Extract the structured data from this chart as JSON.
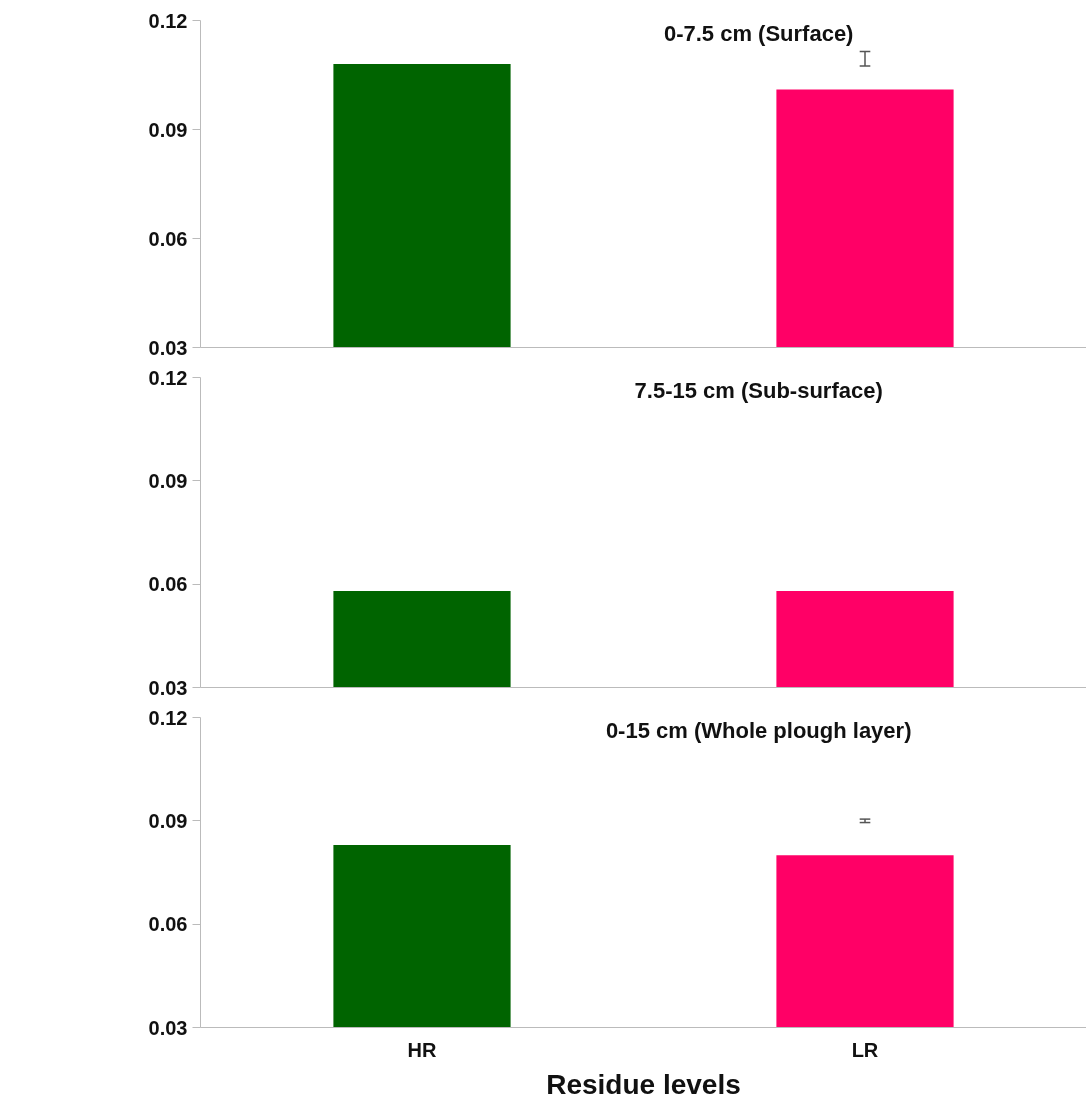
{
  "chart_data": [
    {
      "type": "bar",
      "title": "0-7.5 cm (Surface)",
      "categories": [
        null,
        null
      ],
      "colors": [
        "#006400",
        "#ff0066"
      ],
      "values": [
        0.108,
        0.101
      ],
      "errors": [
        null,
        [
          0.1075,
          0.1115
        ]
      ],
      "ylim": [
        0.03,
        0.12
      ],
      "yticks": [
        0.03,
        0.06,
        0.09,
        0.12
      ],
      "grid": false
    },
    {
      "type": "bar",
      "title": "7.5-15 cm (Sub-surface)",
      "categories": [
        null,
        null
      ],
      "colors": [
        "#006400",
        "#ff0066"
      ],
      "values": [
        0.058,
        0.058
      ],
      "ylim": [
        0.03,
        0.12
      ],
      "yticks": [
        0.03,
        0.06,
        0.09,
        0.12
      ],
      "grid": false
    },
    {
      "type": "bar",
      "title": "0-15 cm (Whole plough layer)",
      "xlabel": "Residue levels",
      "categories": [
        "HR",
        "LR"
      ],
      "colors": [
        "#006400",
        "#ff0066"
      ],
      "values": [
        0.083,
        0.08
      ],
      "errors": [
        null,
        [
          0.0895,
          0.0905
        ]
      ],
      "ylim": [
        0.03,
        0.12
      ],
      "yticks": [
        0.03,
        0.06,
        0.09,
        0.12
      ],
      "grid": false
    }
  ]
}
